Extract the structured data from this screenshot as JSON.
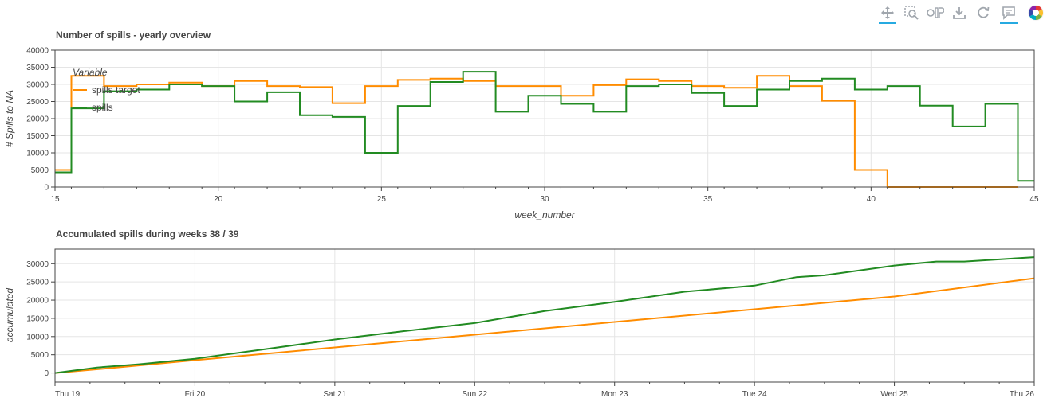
{
  "toolbar": {
    "tools": [
      {
        "name": "pan-tool",
        "icon": "move-arrows-icon",
        "active": true
      },
      {
        "name": "box-zoom-tool",
        "icon": "box-zoom-icon",
        "active": false
      },
      {
        "name": "wheel-zoom-tool",
        "icon": "wheel-zoom-icon",
        "active": false
      },
      {
        "name": "save-tool",
        "icon": "download-icon",
        "active": false
      },
      {
        "name": "reset-tool",
        "icon": "refresh-icon",
        "active": false
      },
      {
        "name": "hover-tool",
        "icon": "comment-icon",
        "active": true
      }
    ],
    "logo": "bokeh-logo-icon"
  },
  "colors": {
    "spills_target": "#ff8c00",
    "spills": "#228b22",
    "grid": "#e5e5e5",
    "axis": "#444444"
  },
  "chart_data": [
    {
      "type": "line",
      "step": true,
      "title": "Number of spills - yearly overview",
      "xlabel": "week_number",
      "ylabel": "# Spills to NA",
      "xlim": [
        15,
        45
      ],
      "ylim": [
        0,
        40000
      ],
      "x_ticks": [
        15,
        20,
        25,
        30,
        35,
        40,
        45
      ],
      "y_ticks": [
        0,
        5000,
        10000,
        15000,
        20000,
        25000,
        30000,
        35000,
        40000
      ],
      "grid": true,
      "legend": {
        "title": "Variable",
        "position": "top-left"
      },
      "series": [
        {
          "name": "spills target",
          "color": "#ff8c00",
          "x": [
            15,
            16,
            17,
            18,
            19,
            20,
            21,
            22,
            23,
            24,
            25,
            26,
            27,
            28,
            29,
            30,
            31,
            32,
            33,
            34,
            35,
            36,
            37,
            38,
            39,
            40,
            41,
            42,
            43,
            44
          ],
          "values": [
            5000,
            32500,
            29500,
            30000,
            30500,
            29500,
            31000,
            29500,
            29200,
            24500,
            29500,
            31300,
            31700,
            31000,
            29500,
            29500,
            26700,
            29800,
            31500,
            31000,
            29500,
            29000,
            32500,
            29500,
            25200,
            5000,
            0,
            0,
            0,
            0
          ]
        },
        {
          "name": "spills",
          "color": "#228b22",
          "x": [
            15,
            16,
            17,
            18,
            19,
            20,
            21,
            22,
            23,
            24,
            25,
            26,
            27,
            28,
            29,
            30,
            31,
            32,
            33,
            34,
            35,
            36,
            37,
            38,
            39,
            40,
            41,
            42,
            43,
            44,
            45
          ],
          "values": [
            4300,
            23000,
            28000,
            28500,
            30000,
            29500,
            25000,
            27700,
            21000,
            20500,
            10000,
            23700,
            30700,
            33700,
            22000,
            26700,
            24300,
            22000,
            29500,
            30000,
            27500,
            23700,
            28500,
            31000,
            31700,
            28500,
            29500,
            23800,
            17700,
            24300,
            1800
          ]
        }
      ]
    },
    {
      "type": "line",
      "title": "Accumulated spills during weeks 38 / 39",
      "xlabel": "",
      "ylabel": "accumulated",
      "x_ticks": [
        "Thu 19",
        "Fri 20",
        "Sat 21",
        "Sun 22",
        "Mon 23",
        "Tue 24",
        "Wed 25",
        "Thu 26"
      ],
      "xlim_days": [
        0,
        7
      ],
      "ylim": [
        -2500,
        34000
      ],
      "y_ticks": [
        0,
        5000,
        10000,
        15000,
        20000,
        25000,
        30000
      ],
      "grid": true,
      "series": [
        {
          "name": "spills target",
          "color": "#ff8c00",
          "x_days": [
            0,
            0.5,
            1,
            2,
            3,
            4,
            5,
            6,
            7
          ],
          "values": [
            0,
            1700,
            3500,
            7000,
            10500,
            14000,
            17500,
            21000,
            26000
          ]
        },
        {
          "name": "spills",
          "color": "#228b22",
          "x_days": [
            0,
            0.3,
            0.6,
            1,
            1.5,
            2,
            2.5,
            3,
            3.5,
            4,
            4.5,
            5,
            5.3,
            5.5,
            6,
            6.3,
            6.5,
            7
          ],
          "values": [
            0,
            1500,
            2400,
            3900,
            6500,
            9200,
            11500,
            13700,
            17000,
            19500,
            22300,
            24000,
            26300,
            26800,
            29500,
            30600,
            30600,
            31800
          ]
        }
      ]
    }
  ]
}
